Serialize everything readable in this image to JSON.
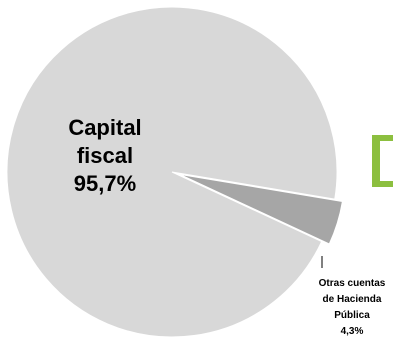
{
  "chart_data": {
    "type": "pie",
    "title": "",
    "slices": [
      {
        "label_lines": [
          "Capital",
          "fiscal"
        ],
        "value_label": "95,7%",
        "value": 95.7,
        "color": "#d8d8d8"
      },
      {
        "label_lines": [
          "Otras cuentas",
          "de Hacienda",
          "Pública"
        ],
        "value_label": "4,3%",
        "value": 4.3,
        "color": "#a6a6a6",
        "exploded": true
      }
    ],
    "legend_fragment_color": "#8cbf3f"
  }
}
